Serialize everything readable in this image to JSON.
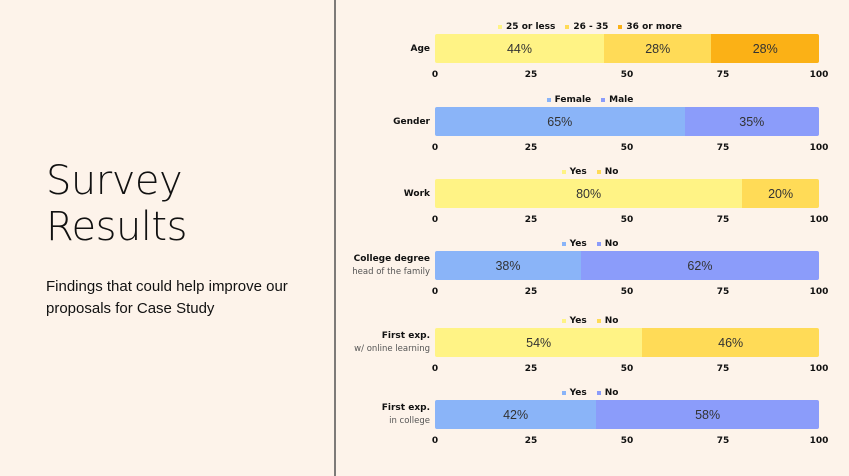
{
  "slide": {
    "title_line1": "Survey",
    "title_line2": "Results",
    "subtitle": "Findings that could help improve our proposals for Case Study"
  },
  "chart_data": [
    {
      "type": "bar",
      "stacked": true,
      "category": "Age",
      "sub": "",
      "legend_position": "top",
      "xlim": [
        0,
        100
      ],
      "ticks": [
        "0",
        "25",
        "50",
        "75",
        "100"
      ],
      "series": [
        {
          "name": "25 or less",
          "value": 44,
          "label": "44%",
          "color": "#fff385"
        },
        {
          "name": "26 - 35",
          "value": 28,
          "label": "28%",
          "color": "#ffdb57"
        },
        {
          "name": "36 or more",
          "value": 28,
          "label": "28%",
          "color": "#fbb116"
        }
      ]
    },
    {
      "type": "bar",
      "stacked": true,
      "category": "Gender",
      "sub": "",
      "legend_position": "top",
      "xlim": [
        0,
        100
      ],
      "ticks": [
        "0",
        "25",
        "50",
        "75",
        "100"
      ],
      "series": [
        {
          "name": "Female",
          "value": 65,
          "label": "65%",
          "color": "#8ab4f8"
        },
        {
          "name": "Male",
          "value": 35,
          "label": "35%",
          "color": "#8b9cfa"
        }
      ]
    },
    {
      "type": "bar",
      "stacked": true,
      "category": "Work",
      "sub": "",
      "legend_position": "top",
      "xlim": [
        0,
        100
      ],
      "ticks": [
        "0",
        "25",
        "50",
        "75",
        "100"
      ],
      "series": [
        {
          "name": "Yes",
          "value": 80,
          "label": "80%",
          "color": "#fff385"
        },
        {
          "name": "No",
          "value": 20,
          "label": "20%",
          "color": "#ffdb57"
        }
      ]
    },
    {
      "type": "bar",
      "stacked": true,
      "category": "College degree",
      "sub": "head of the family",
      "legend_position": "top",
      "xlim": [
        0,
        100
      ],
      "ticks": [
        "0",
        "25",
        "50",
        "75",
        "100"
      ],
      "series": [
        {
          "name": "Yes",
          "value": 38,
          "label": "38%",
          "color": "#8ab4f8"
        },
        {
          "name": "No",
          "value": 62,
          "label": "62%",
          "color": "#8b9cfa"
        }
      ]
    },
    {
      "type": "bar",
      "stacked": true,
      "category": "First exp.",
      "sub": "w/ online learning",
      "legend_position": "top",
      "xlim": [
        0,
        100
      ],
      "ticks": [
        "0",
        "25",
        "50",
        "75",
        "100"
      ],
      "series": [
        {
          "name": "Yes",
          "value": 54,
          "label": "54%",
          "color": "#fff385"
        },
        {
          "name": "No",
          "value": 46,
          "label": "46%",
          "color": "#ffdb57"
        }
      ]
    },
    {
      "type": "bar",
      "stacked": true,
      "category": "First exp.",
      "sub": "in college",
      "legend_position": "top",
      "xlim": [
        0,
        100
      ],
      "ticks": [
        "0",
        "25",
        "50",
        "75",
        "100"
      ],
      "series": [
        {
          "name": "Yes",
          "value": 42,
          "label": "42%",
          "color": "#8ab4f8"
        },
        {
          "name": "No",
          "value": 58,
          "label": "58%",
          "color": "#8b9cfa"
        }
      ]
    }
  ]
}
